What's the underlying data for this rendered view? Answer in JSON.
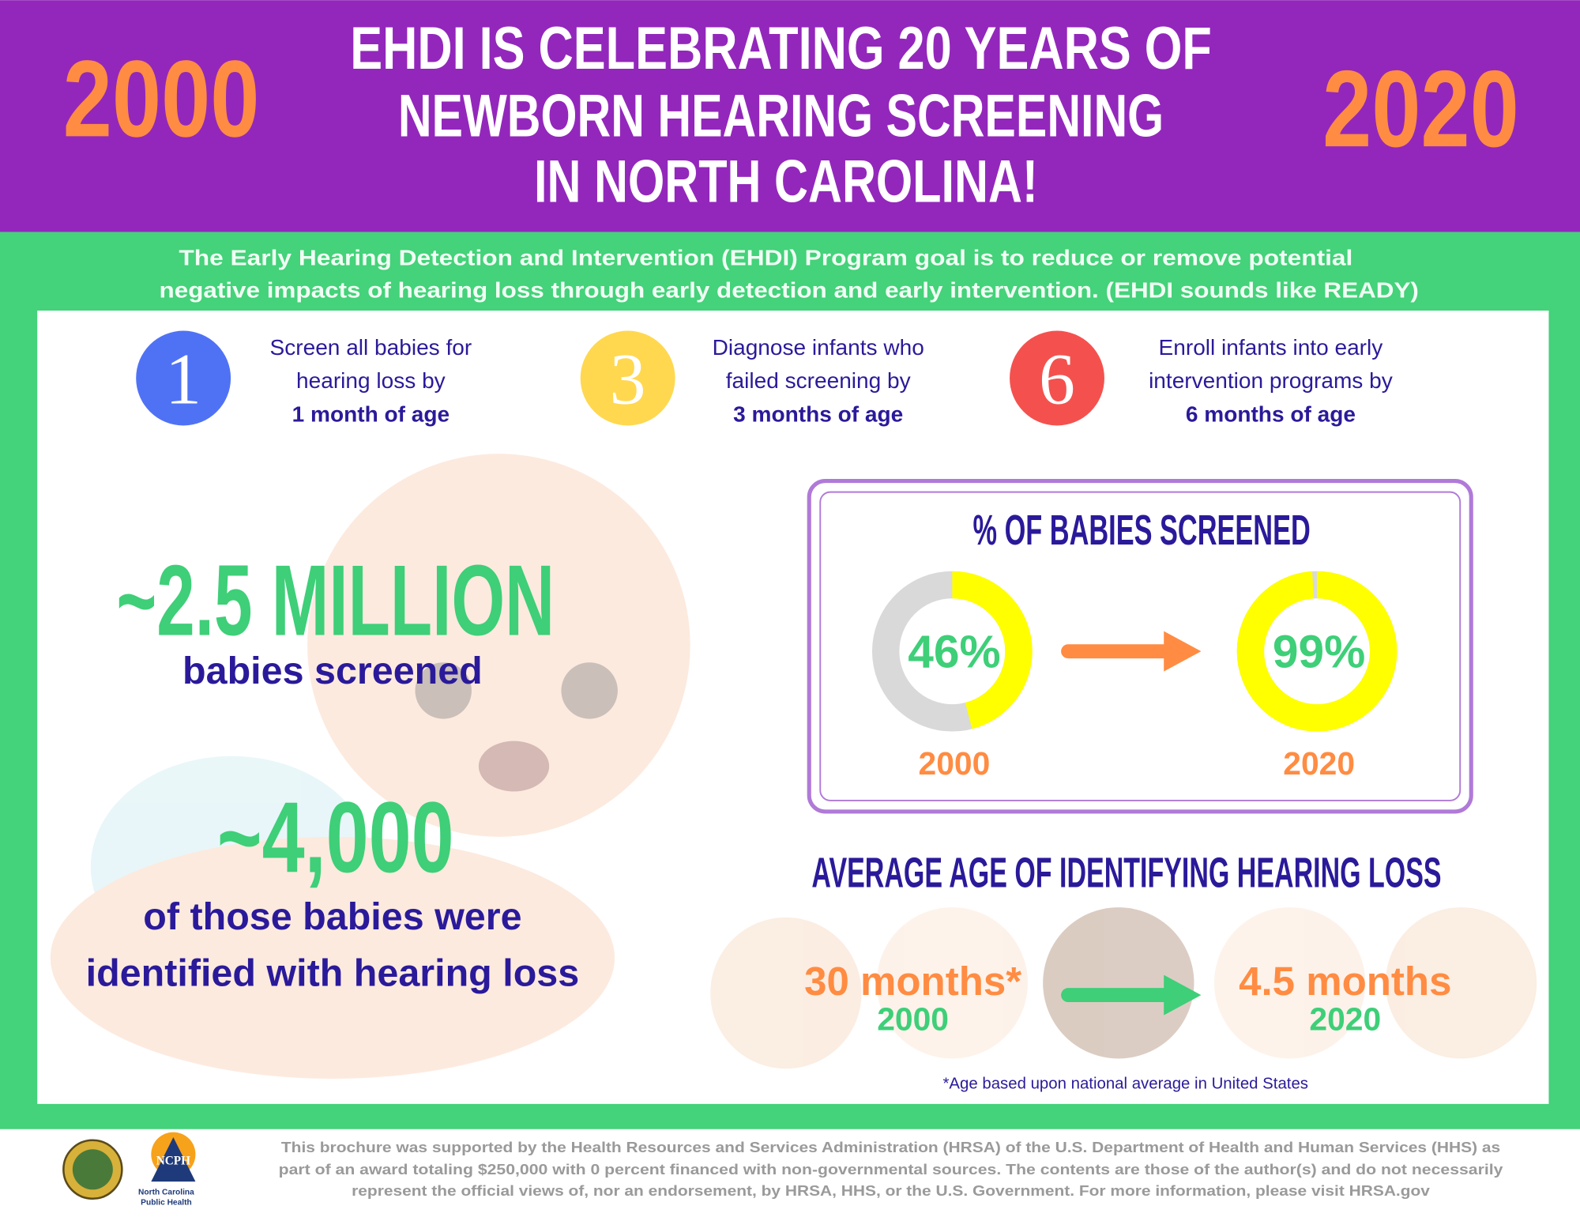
{
  "header": {
    "year_left": "2000",
    "year_right": "2020",
    "title_lines": [
      "EHDI IS CELEBRATING 20 YEARS OF",
      "NEWBORN HEARING SCREENING",
      "IN NORTH CAROLINA!"
    ]
  },
  "intro_lines": [
    "The Early Hearing Detection and Intervention (EHDI) Program goal is to reduce or remove potential",
    "negative impacts of hearing loss through early detection and early intervention. (EHDI sounds like READY)"
  ],
  "goals": [
    {
      "number": "1",
      "lines": [
        "Screen all babies for",
        "hearing loss by"
      ],
      "bold": "1 month of age"
    },
    {
      "number": "3",
      "lines": [
        "Diagnose infants who",
        "failed screening by"
      ],
      "bold": "3 months of age"
    },
    {
      "number": "6",
      "lines": [
        "Enroll infants into early",
        "intervention programs by"
      ],
      "bold": "6 months of age"
    }
  ],
  "stats": [
    {
      "figure": "~2.5 MILLION",
      "lines": [
        "babies screened"
      ]
    },
    {
      "figure": "~4,000",
      "lines": [
        "of those babies were",
        "identified with hearing loss"
      ]
    }
  ],
  "screened": {
    "title": "% OF BABIES SCREENED",
    "items": [
      {
        "value": 46,
        "label": "46%",
        "year": "2000"
      },
      {
        "value": 99,
        "label": "99%",
        "year": "2020"
      }
    ]
  },
  "age": {
    "title": "AVERAGE AGE OF IDENTIFYING HEARING LOSS",
    "items": [
      {
        "label": "30 months*",
        "year": "2000"
      },
      {
        "label": "4.5 months",
        "year": "2020"
      }
    ],
    "footnote": "*Age based upon national average in United States"
  },
  "footer": {
    "lines": [
      "This brochure was supported by the Health Resources and Services Administration (HRSA) of the U.S. Department of Health and Human Services (HHS) as",
      "part of an award totaling $250,000 with 0 percent financed with non-governmental sources. The contents are those of the author(s) and do not necessarily",
      "represent the official views of, nor an endorsement, by HRSA, HHS, or the U.S. Government. For more information, please visit HRSA.gov"
    ],
    "logo_abbr": "NCPH",
    "logo_lines": [
      "North Carolina",
      "Public Health"
    ]
  }
}
